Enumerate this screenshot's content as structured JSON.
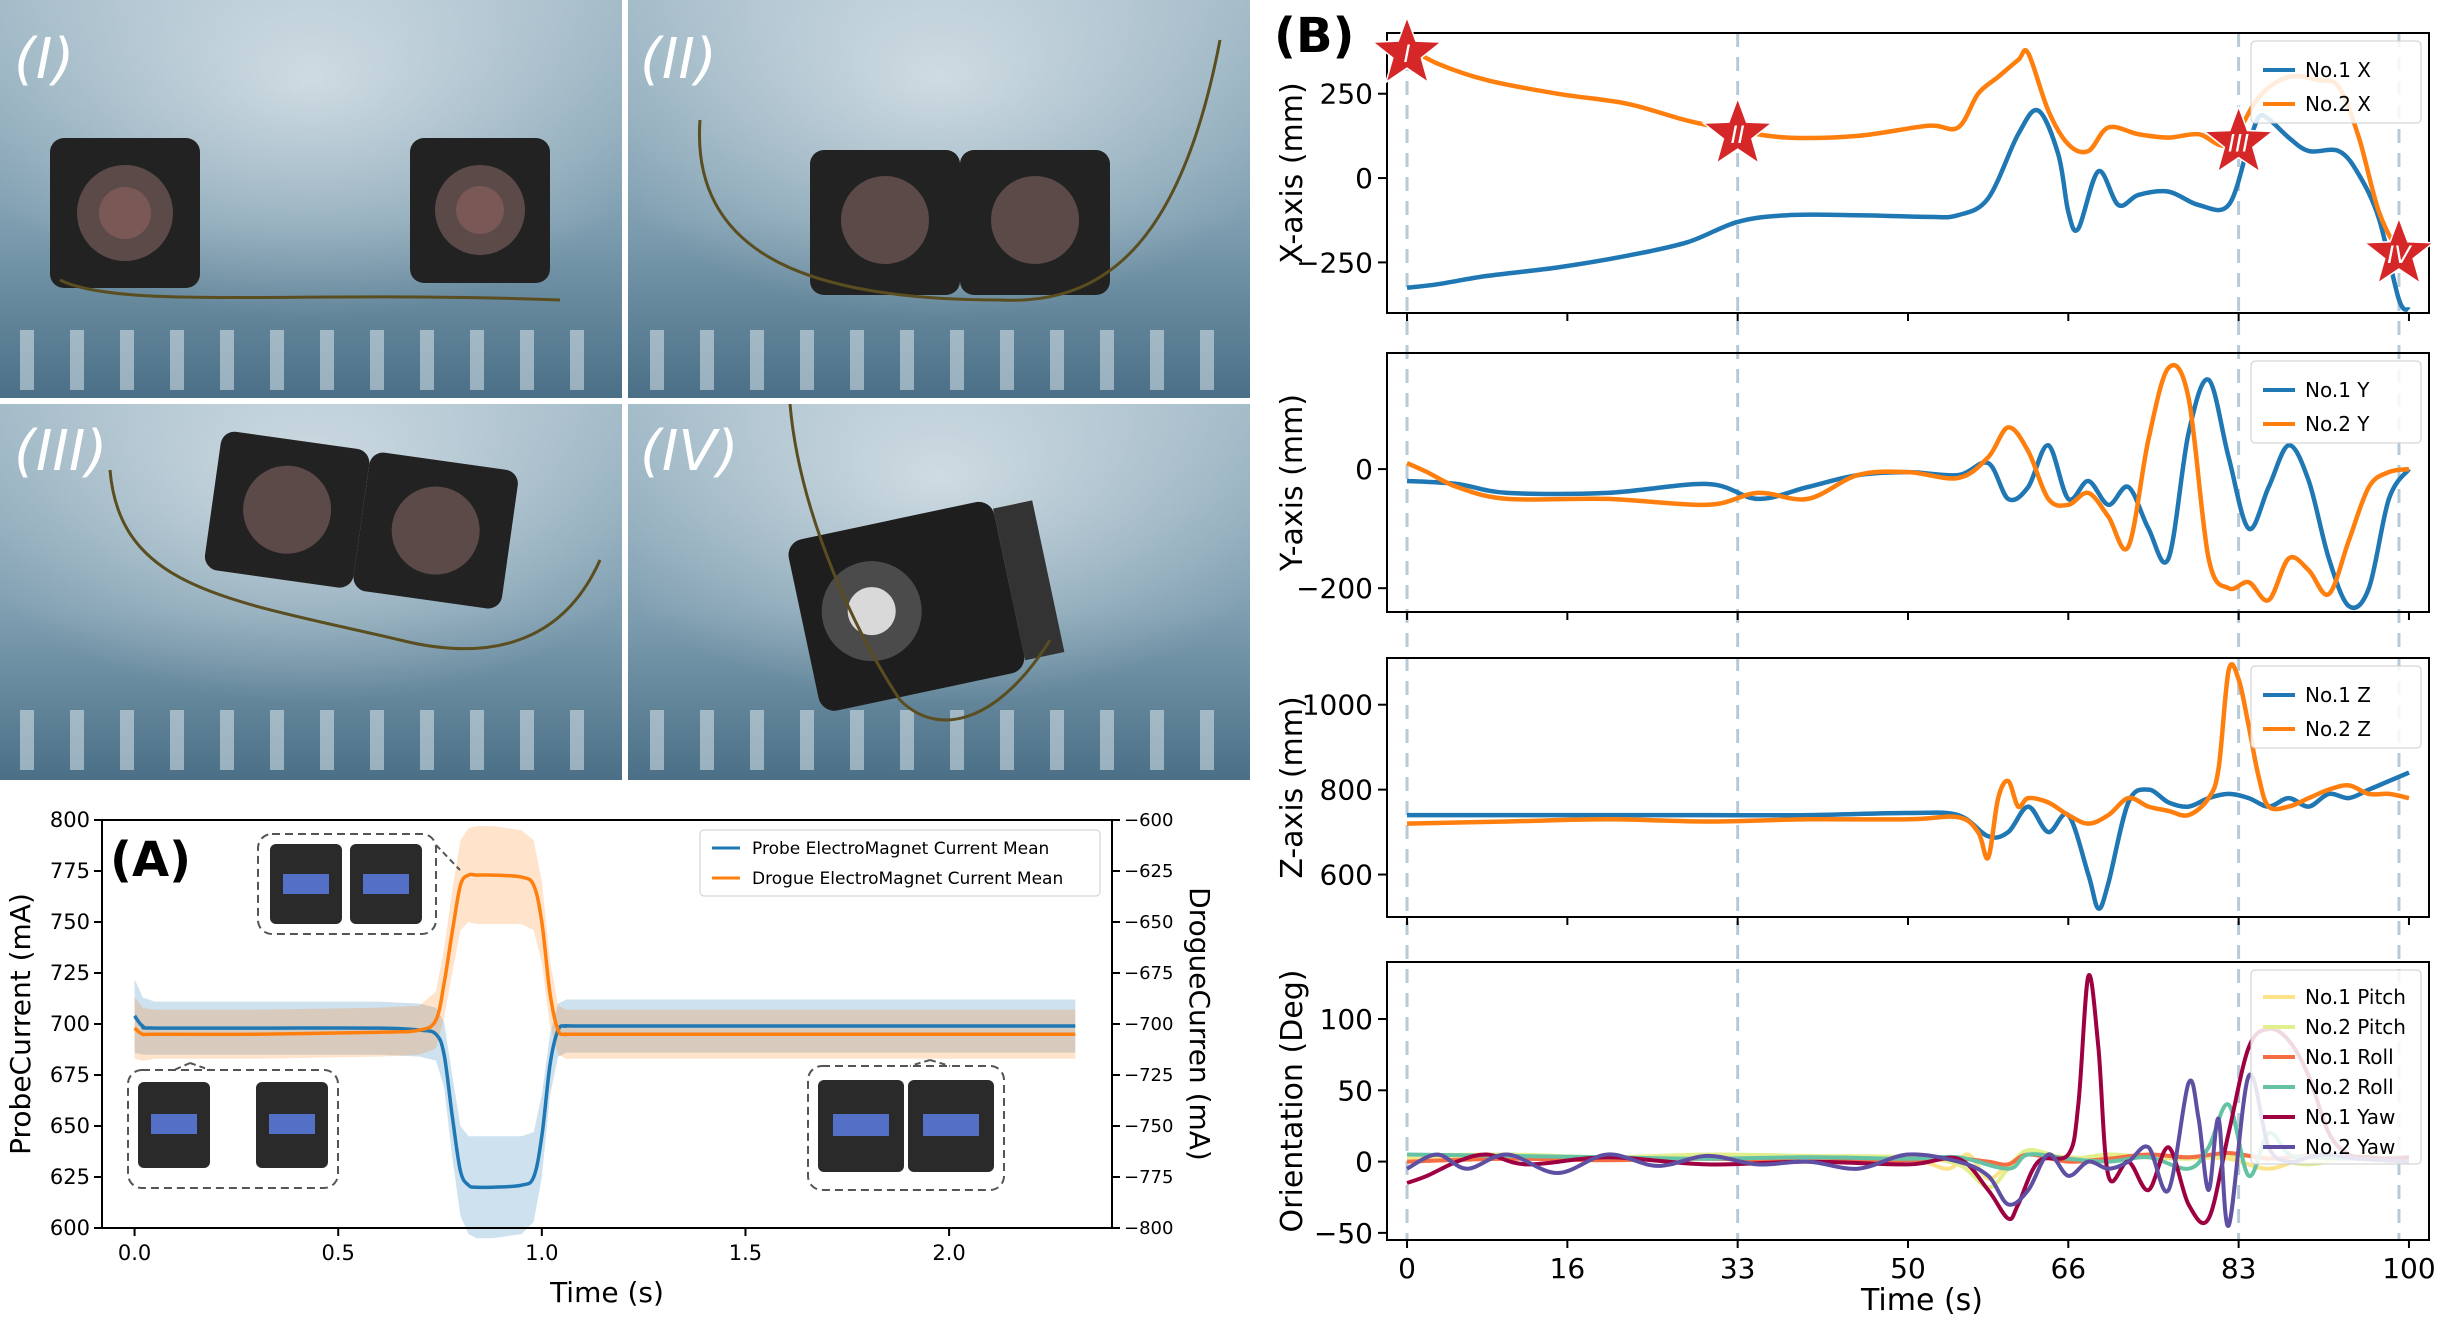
{
  "panel_a_label": "(A)",
  "panel_b_label": "(B)",
  "photos": [
    {
      "label": "(I)"
    },
    {
      "label": "(II)"
    },
    {
      "label": "(III)"
    },
    {
      "label": "(IV)"
    }
  ],
  "colors": {
    "blue": "#1f77b4",
    "orange": "#ff7f0e",
    "star": "#d62728",
    "pitch1": "#fce38a",
    "pitch2": "#e2ef8c",
    "roll1": "#f46d43",
    "roll2": "#66c2a5",
    "yaw1": "#9e0142",
    "yaw2": "#5e4fa2"
  },
  "chart_data": [
    {
      "id": "A",
      "type": "line",
      "title": "",
      "xlabel": "Time (s)",
      "ylabel": "ProbeCurrent (mA)",
      "ylabel_right": "DrogueCurren (mA)",
      "xlim": [
        -0.08,
        2.4
      ],
      "ylim": [
        600,
        800
      ],
      "ylim_right": [
        -800,
        -600
      ],
      "xticks": [
        "0.0",
        "0.5",
        "1.0",
        "1.5",
        "2.0"
      ],
      "xtick_values": [
        0,
        0.5,
        1.0,
        1.5,
        2.0
      ],
      "yticks": [
        "600",
        "625",
        "650",
        "675",
        "700",
        "725",
        "750",
        "775",
        "800"
      ],
      "yticks_right": [
        "−800",
        "−775",
        "−750",
        "−725",
        "−700",
        "−675",
        "−650",
        "−625",
        "−600"
      ],
      "legend": [
        "Probe ElectroMagnet Current Mean",
        "Drogue ElectroMagnet Current Mean"
      ],
      "series": [
        {
          "name": "Probe ElectroMagnet Current Mean",
          "axis": "left",
          "x": [
            0,
            0.02,
            0.05,
            0.3,
            0.6,
            0.7,
            0.74,
            0.76,
            0.78,
            0.8,
            0.82,
            0.84,
            0.88,
            0.95,
            0.98,
            1.0,
            1.02,
            1.04,
            1.06,
            1.1,
            1.5,
            2.0,
            2.31
          ],
          "values": [
            704,
            699,
            698,
            698,
            698,
            697,
            695,
            685,
            655,
            628,
            621,
            620,
            620,
            621,
            625,
            645,
            680,
            697,
            699,
            699,
            699,
            699,
            699
          ],
          "band": [
            18,
            14,
            13,
            13,
            13,
            13,
            13,
            16,
            20,
            22,
            24,
            25,
            25,
            24,
            22,
            20,
            15,
            13,
            13,
            13,
            13,
            13,
            13
          ]
        },
        {
          "name": "Drogue ElectroMagnet Current Mean",
          "axis": "right",
          "x": [
            0,
            0.02,
            0.05,
            0.3,
            0.6,
            0.7,
            0.74,
            0.76,
            0.78,
            0.8,
            0.82,
            0.84,
            0.88,
            0.95,
            0.98,
            1.0,
            1.02,
            1.04,
            1.06,
            1.1,
            1.5,
            2.0,
            2.31
          ],
          "values": [
            -702,
            -705,
            -705,
            -705,
            -704,
            -703,
            -698,
            -680,
            -655,
            -632,
            -627,
            -627,
            -627,
            -628,
            -632,
            -650,
            -685,
            -703,
            -705,
            -705,
            -705,
            -705,
            -705
          ],
          "band": [
            15,
            13,
            12,
            12,
            12,
            12,
            14,
            17,
            20,
            22,
            23,
            24,
            24,
            23,
            22,
            20,
            16,
            12,
            12,
            12,
            12,
            12,
            12
          ]
        }
      ]
    },
    {
      "id": "B1",
      "type": "line",
      "ylabel": "X-axis (mm)",
      "xlim": [
        -2,
        102
      ],
      "ylim": [
        -400,
        430
      ],
      "yticks": [
        "250",
        "0",
        "−250"
      ],
      "ytick_values": [
        250,
        0,
        -250
      ],
      "legend": [
        "No.1 X",
        "No.2 X"
      ],
      "series": [
        {
          "name": "No.1 X",
          "x": [
            0,
            3,
            8,
            15,
            22,
            28,
            33,
            38,
            45,
            52,
            55,
            58,
            61,
            63,
            65,
            66,
            67,
            69,
            71,
            73,
            76,
            79,
            82,
            84,
            85,
            86,
            88,
            90,
            93,
            95,
            97,
            99,
            100
          ],
          "values": [
            -325,
            -315,
            -290,
            -265,
            -230,
            -190,
            -130,
            -110,
            -110,
            -115,
            -110,
            -60,
            130,
            200,
            70,
            -100,
            -150,
            20,
            -80,
            -50,
            -40,
            -80,
            -80,
            100,
            180,
            175,
            120,
            80,
            80,
            10,
            -120,
            -360,
            -390
          ]
        },
        {
          "name": "No.2 X",
          "x": [
            0,
            3,
            8,
            15,
            22,
            28,
            33,
            38,
            45,
            52,
            55,
            57,
            59,
            61,
            62,
            64,
            66,
            68,
            70,
            73,
            76,
            79,
            82,
            85,
            88,
            91,
            93,
            95,
            97,
            99,
            100
          ],
          "values": [
            390,
            340,
            290,
            250,
            220,
            170,
            140,
            120,
            125,
            155,
            150,
            250,
            300,
            350,
            370,
            200,
            100,
            80,
            150,
            130,
            120,
            130,
            100,
            240,
            300,
            290,
            270,
            120,
            -100,
            -220,
            -260
          ]
        }
      ],
      "stars": [
        {
          "label": "I",
          "x": 0,
          "y": 370
        },
        {
          "label": "II",
          "x": 33,
          "y": 130
        },
        {
          "label": "III",
          "x": 83,
          "y": 105
        },
        {
          "label": "IV",
          "x": 99,
          "y": -225
        }
      ]
    },
    {
      "id": "B2",
      "type": "line",
      "ylabel": "Y-axis (mm)",
      "xlim": [
        -2,
        102
      ],
      "ylim": [
        -240,
        195
      ],
      "yticks": [
        "0",
        "−200"
      ],
      "ytick_values": [
        0,
        -200
      ],
      "legend": [
        "No.1 Y",
        "No.2 Y"
      ],
      "series": [
        {
          "name": "No.1 Y",
          "x": [
            0,
            5,
            10,
            20,
            30,
            35,
            40,
            45,
            50,
            55,
            58,
            60,
            62,
            64,
            66,
            68,
            70,
            72,
            74,
            76,
            78,
            80,
            82,
            84,
            86,
            88,
            90,
            92,
            94,
            96,
            98,
            100
          ],
          "values": [
            -20,
            -25,
            -40,
            -40,
            -25,
            -50,
            -30,
            -10,
            -5,
            -10,
            10,
            -50,
            -30,
            40,
            -50,
            -20,
            -60,
            -30,
            -100,
            -150,
            60,
            150,
            20,
            -100,
            -30,
            40,
            -20,
            -150,
            -230,
            -200,
            -50,
            0
          ]
        },
        {
          "name": "No.2 Y",
          "x": [
            0,
            2,
            5,
            10,
            20,
            30,
            35,
            40,
            45,
            50,
            55,
            58,
            60,
            62,
            64,
            66,
            68,
            70,
            72,
            74,
            76,
            78,
            80,
            82,
            84,
            86,
            88,
            90,
            92,
            94,
            96,
            98,
            100
          ],
          "values": [
            10,
            -5,
            -30,
            -50,
            -50,
            -60,
            -40,
            -50,
            -10,
            -5,
            -15,
            20,
            70,
            30,
            -50,
            -60,
            -40,
            -80,
            -130,
            50,
            170,
            120,
            -150,
            -200,
            -190,
            -220,
            -150,
            -170,
            -210,
            -120,
            -30,
            -5,
            0
          ]
        }
      ]
    },
    {
      "id": "B3",
      "type": "line",
      "ylabel": "Z-axis (mm)",
      "xlim": [
        -2,
        102
      ],
      "ylim": [
        500,
        1110
      ],
      "yticks": [
        "1000",
        "800",
        "600"
      ],
      "ytick_values": [
        1000,
        800,
        600
      ],
      "legend": [
        "No.1 Z",
        "No.2 Z"
      ],
      "series": [
        {
          "name": "No.1 Z",
          "x": [
            0,
            10,
            20,
            30,
            40,
            50,
            55,
            58,
            60,
            62,
            64,
            66,
            68,
            69,
            70,
            72,
            74,
            76,
            78,
            80,
            82,
            84,
            86,
            88,
            90,
            92,
            94,
            96,
            98,
            100
          ],
          "values": [
            740,
            740,
            740,
            740,
            740,
            745,
            740,
            690,
            700,
            760,
            700,
            740,
            600,
            520,
            580,
            770,
            800,
            770,
            760,
            780,
            790,
            780,
            760,
            780,
            760,
            790,
            780,
            800,
            820,
            840
          ]
        },
        {
          "name": "No.2 Z",
          "x": [
            0,
            10,
            20,
            30,
            40,
            50,
            55,
            57,
            58,
            59,
            60,
            61,
            62,
            64,
            66,
            68,
            70,
            72,
            74,
            76,
            78,
            80,
            81,
            82,
            83,
            84,
            85,
            86,
            88,
            90,
            92,
            94,
            96,
            98,
            100
          ],
          "values": [
            720,
            725,
            730,
            725,
            730,
            730,
            735,
            700,
            640,
            780,
            820,
            760,
            780,
            770,
            740,
            720,
            740,
            780,
            760,
            750,
            740,
            780,
            850,
            1080,
            1060,
            950,
            830,
            760,
            760,
            780,
            800,
            810,
            790,
            790,
            780
          ]
        }
      ]
    },
    {
      "id": "B4",
      "type": "line",
      "ylabel": "Orientation (Deg)",
      "xlabel": "Time (s)",
      "xlim": [
        -2,
        102
      ],
      "ylim": [
        -55,
        140
      ],
      "xticks": [
        "0",
        "16",
        "33",
        "50",
        "66",
        "83",
        "100"
      ],
      "xtick_values": [
        0,
        16,
        33,
        50,
        66,
        83,
        100
      ],
      "yticks": [
        "100",
        "50",
        "0",
        "−50"
      ],
      "ytick_values": [
        100,
        50,
        0,
        -50
      ],
      "legend": [
        "No.1 Pitch",
        "No.2 Pitch",
        "No.1 Roll",
        "No.2 Roll",
        "No.1 Yaw",
        "No.2 Yaw"
      ],
      "series": [
        {
          "name": "No.1 Pitch",
          "x": [
            0,
            10,
            20,
            30,
            40,
            50,
            54,
            56,
            58,
            60,
            62,
            66,
            70,
            74,
            78,
            82,
            86,
            90,
            95,
            100
          ],
          "values": [
            2,
            3,
            2,
            4,
            3,
            2,
            -5,
            5,
            -12,
            -2,
            5,
            3,
            2,
            4,
            3,
            2,
            -5,
            3,
            2,
            3
          ]
        },
        {
          "name": "No.2 Pitch",
          "x": [
            0,
            10,
            20,
            30,
            40,
            50,
            55,
            58,
            60,
            62,
            66,
            70,
            74,
            78,
            82,
            86,
            90,
            95,
            100
          ],
          "values": [
            4,
            5,
            3,
            5,
            4,
            3,
            -2,
            -18,
            -5,
            8,
            2,
            5,
            3,
            2,
            4,
            3,
            -2,
            4,
            3
          ]
        },
        {
          "name": "No.1 Roll",
          "x": [
            0,
            10,
            20,
            30,
            40,
            50,
            55,
            58,
            60,
            62,
            66,
            70,
            74,
            78,
            82,
            86,
            90,
            95,
            100
          ],
          "values": [
            0,
            2,
            1,
            2,
            0,
            1,
            2,
            0,
            -2,
            5,
            0,
            2,
            5,
            3,
            6,
            2,
            4,
            2,
            3
          ]
        },
        {
          "name": "No.2 Roll",
          "x": [
            0,
            10,
            20,
            30,
            40,
            50,
            55,
            60,
            62,
            66,
            70,
            74,
            78,
            80,
            82,
            84,
            86,
            88,
            90,
            95,
            100
          ],
          "values": [
            5,
            4,
            3,
            2,
            3,
            2,
            3,
            -5,
            5,
            2,
            0,
            3,
            -5,
            10,
            40,
            -10,
            20,
            5,
            3,
            2,
            3
          ]
        },
        {
          "name": "No.1 Yaw",
          "x": [
            0,
            2,
            5,
            8,
            12,
            20,
            30,
            40,
            50,
            55,
            58,
            60,
            61,
            63,
            66,
            67,
            68,
            69,
            70,
            72,
            74,
            76,
            78,
            80,
            82,
            84,
            86,
            88,
            90,
            92,
            94,
            96,
            98,
            100
          ],
          "values": [
            -15,
            -10,
            0,
            5,
            -2,
            3,
            -2,
            0,
            -2,
            2,
            -20,
            -40,
            -30,
            0,
            5,
            40,
            130,
            80,
            -10,
            0,
            -20,
            10,
            -30,
            -40,
            20,
            80,
            93,
            85,
            60,
            20,
            5,
            3,
            2,
            3
          ]
        },
        {
          "name": "No.2 Yaw",
          "x": [
            0,
            3,
            6,
            10,
            15,
            20,
            25,
            30,
            35,
            40,
            45,
            50,
            55,
            58,
            60,
            62,
            64,
            66,
            68,
            70,
            72,
            74,
            76,
            78,
            79,
            80,
            81,
            82,
            84,
            86,
            88,
            90,
            92,
            95,
            100
          ],
          "values": [
            -5,
            5,
            -5,
            5,
            -8,
            5,
            -3,
            4,
            -2,
            0,
            -5,
            5,
            0,
            -10,
            -30,
            -20,
            5,
            -10,
            0,
            -5,
            0,
            10,
            -20,
            55,
            30,
            -20,
            30,
            -45,
            60,
            10,
            0,
            3,
            5,
            2,
            0
          ]
        }
      ]
    }
  ]
}
